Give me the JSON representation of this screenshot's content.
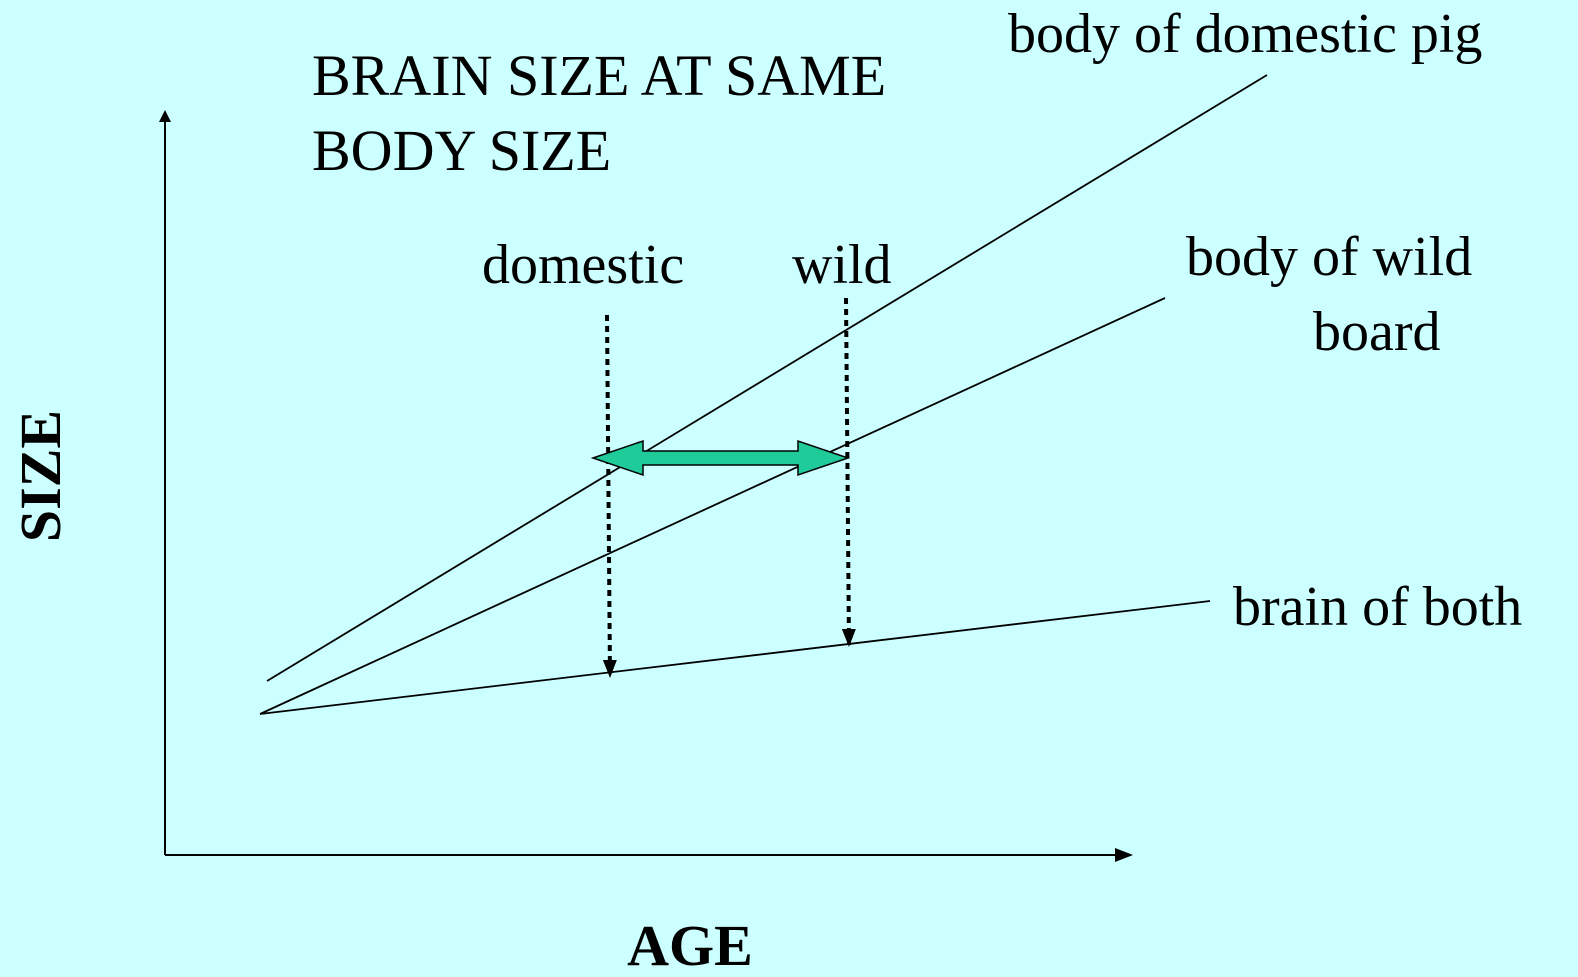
{
  "title": [
    "BRAIN SIZE AT SAME",
    "BODY SIZE"
  ],
  "x_axis_label": "AGE",
  "y_axis_label": "SIZE",
  "curves": {
    "domestic_pig": "body of domestic pig",
    "wild_boar": [
      "body of wild",
      "board"
    ],
    "brain": "brain of both"
  },
  "markers": {
    "domestic": "domestic",
    "wild": "wild"
  }
}
